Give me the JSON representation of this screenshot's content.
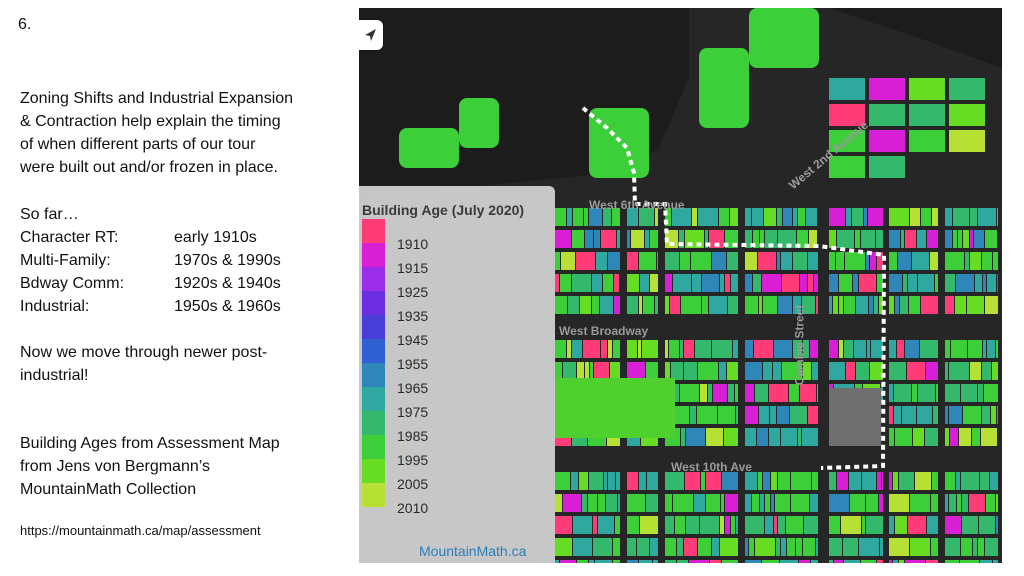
{
  "slide": {
    "number": "6.",
    "intro_line1": "Zoning Shifts and Industrial Expansion",
    "intro_line2": "& Contraction help explain the timing",
    "intro_line3": "of when different parts of our tour",
    "intro_line4": "were built out and/or frozen in place.",
    "so_far": "So far…",
    "periods": [
      {
        "area": "Character RT:",
        "years": "early 1910s"
      },
      {
        "area": "Multi-Family:",
        "years": "1970s & 1990s"
      },
      {
        "area": "Bdway Comm:",
        "years": "1920s & 1940s"
      },
      {
        "area": "Industrial:",
        "years": "1950s & 1960s"
      }
    ],
    "next_line1": "Now we move through newer post-",
    "next_line2": "industrial!",
    "source_line1": "Building Ages from Assessment Map",
    "source_line2": "from Jens von Bergmann’s",
    "source_line3": "MountainMath Collection",
    "url": "https://mountainmath.ca/map/assessment"
  },
  "map": {
    "legend_title": "Building Age (July 2020)",
    "legend": [
      {
        "label": "1910",
        "color": "#ff3c78"
      },
      {
        "label": "1915",
        "color": "#d81fd6"
      },
      {
        "label": "1925",
        "color": "#9a2de8"
      },
      {
        "label": "1935",
        "color": "#6a2fe0"
      },
      {
        "label": "1945",
        "color": "#4a3ed8"
      },
      {
        "label": "1955",
        "color": "#3160d2"
      },
      {
        "label": "1965",
        "color": "#2f86b8"
      },
      {
        "label": "1975",
        "color": "#2fa8a0"
      },
      {
        "label": "1985",
        "color": "#33b86c"
      },
      {
        "label": "1995",
        "color": "#3ccf3a"
      },
      {
        "label": "2005",
        "color": "#66dd22"
      },
      {
        "label": "2010",
        "color": "#b6e034"
      }
    ],
    "attribution": "MountainMath.ca",
    "streets": {
      "w6th": "West 6th Avenue",
      "w2nd": "West 2nd Avenue",
      "broadway": "West Broadway",
      "w10th": "West 10th Ave",
      "cambie": "Cambie Street"
    }
  }
}
